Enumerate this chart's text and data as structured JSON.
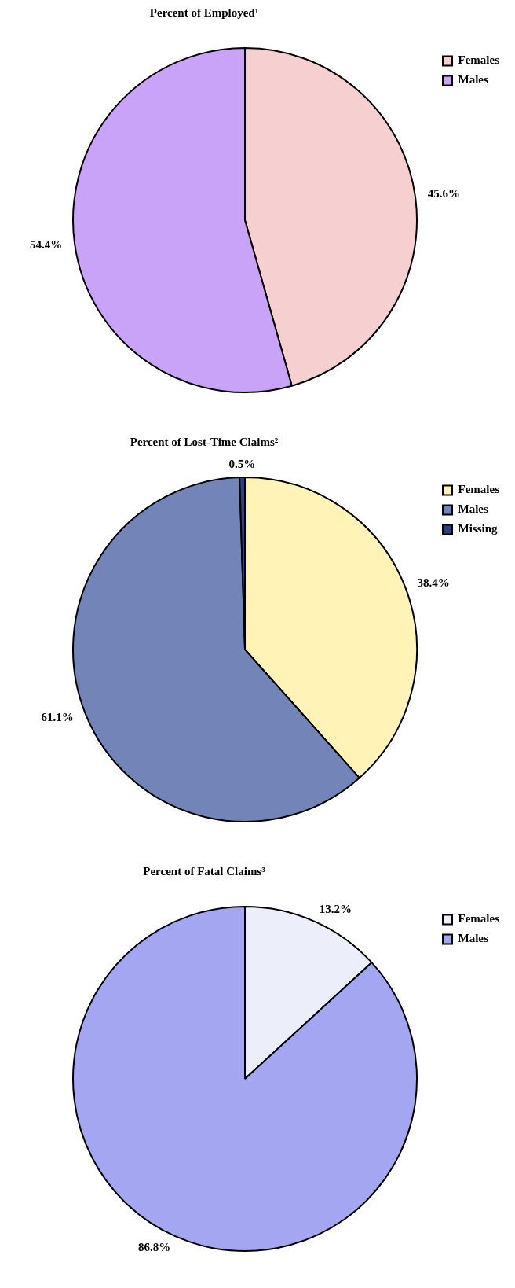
{
  "chart_data": [
    {
      "type": "pie",
      "title": "Percent of Employed¹",
      "categories": [
        "Females",
        "Males"
      ],
      "values": [
        45.6,
        54.4
      ],
      "colors": [
        "#f6d0d0",
        "#c9a3f7"
      ],
      "value_labels": [
        "45.6%",
        "54.4%"
      ],
      "legend": "top right"
    },
    {
      "type": "pie",
      "title": "Percent of Lost-Time Claims²",
      "categories": [
        "Females",
        "Males",
        "Missing"
      ],
      "values": [
        38.4,
        61.1,
        0.5
      ],
      "colors": [
        "#fff3b8",
        "#7384b8",
        "#2f3f80"
      ],
      "value_labels": [
        "38.4%",
        "61.1%",
        "0.5%"
      ],
      "legend": "top right"
    },
    {
      "type": "pie",
      "title": "Percent of Fatal Claims³",
      "categories": [
        "Females",
        "Males"
      ],
      "values": [
        13.2,
        86.8
      ],
      "colors": [
        "#eceff9",
        "#a4a6f2"
      ],
      "value_labels": [
        "13.2%",
        "86.8%"
      ],
      "legend": "top right"
    }
  ]
}
